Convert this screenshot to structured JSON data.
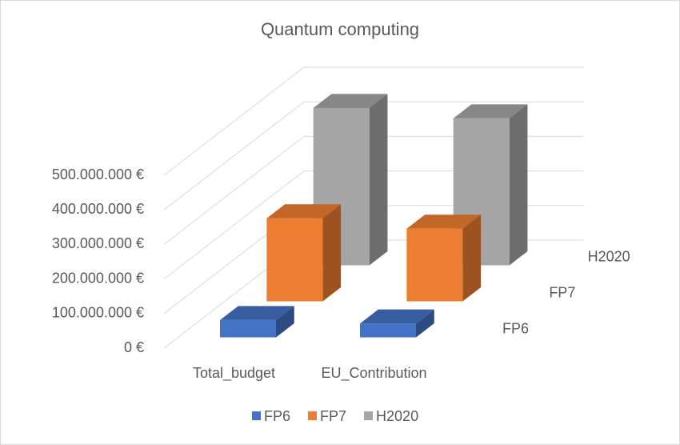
{
  "chart_data": {
    "type": "bar3d",
    "title": "Quantum computing",
    "categories": [
      "Total_budget",
      "EU_Contribution"
    ],
    "series": [
      {
        "name": "FP6",
        "color": "#4472c4",
        "values": [
          50000000,
          40000000
        ]
      },
      {
        "name": "FP7",
        "color": "#ed7d31",
        "values": [
          240000000,
          210000000
        ]
      },
      {
        "name": "H2020",
        "color": "#a5a5a5",
        "values": [
          455000000,
          425000000
        ]
      }
    ],
    "ylim": [
      0,
      500000000
    ],
    "yticks": [
      {
        "value": 0,
        "label": "0 €"
      },
      {
        "value": 100000000,
        "label": "100.000.000 €"
      },
      {
        "value": 200000000,
        "label": "200.000.000 €"
      },
      {
        "value": 300000000,
        "label": "300.000.000 €"
      },
      {
        "value": 400000000,
        "label": "400.000.000 €"
      },
      {
        "value": 500000000,
        "label": "500.000.000 €"
      }
    ],
    "grid": true,
    "legend": "bottom"
  }
}
